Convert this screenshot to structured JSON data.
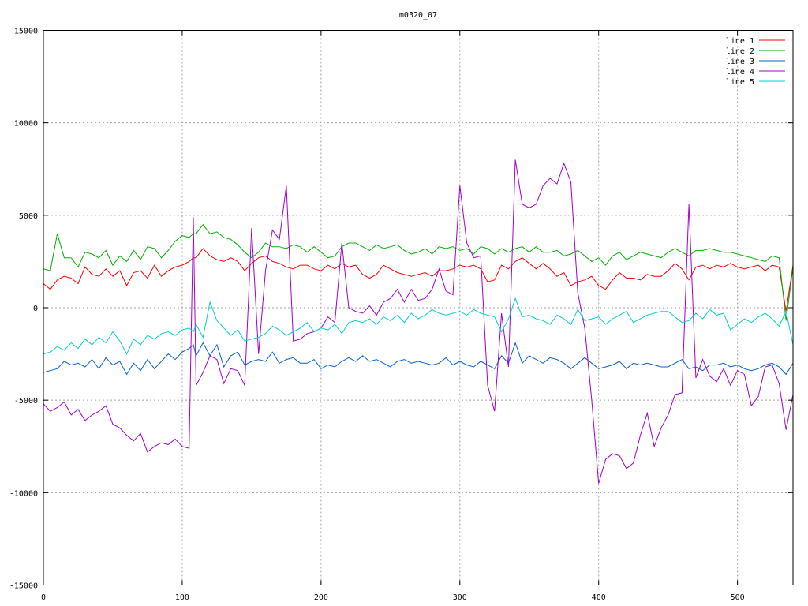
{
  "chart_data": {
    "type": "line",
    "title": "m0320_07",
    "xlabel": "",
    "ylabel": "",
    "xlim": [
      0,
      540
    ],
    "ylim": [
      -15000,
      15000
    ],
    "x_ticks": [
      0,
      100,
      200,
      300,
      400,
      500
    ],
    "y_ticks": [
      -15000,
      -10000,
      -5000,
      0,
      5000,
      10000,
      15000
    ],
    "x_tick_labels": [
      "0",
      "100",
      "200",
      "300",
      "400",
      "500"
    ],
    "y_tick_labels": [
      "-15000",
      "-10000",
      "-5000",
      "0",
      "5000",
      "10000",
      "15000"
    ],
    "grid": true,
    "legend_position": "top-right",
    "x": [
      0,
      5,
      10,
      15,
      20,
      25,
      30,
      35,
      40,
      45,
      50,
      55,
      60,
      65,
      70,
      75,
      80,
      85,
      90,
      95,
      100,
      105,
      108,
      110,
      115,
      120,
      125,
      130,
      135,
      140,
      145,
      150,
      155,
      160,
      165,
      170,
      175,
      180,
      185,
      190,
      195,
      200,
      205,
      210,
      215,
      220,
      225,
      230,
      235,
      240,
      245,
      250,
      255,
      260,
      265,
      270,
      275,
      280,
      285,
      290,
      295,
      300,
      305,
      310,
      315,
      320,
      325,
      330,
      335,
      340,
      345,
      350,
      355,
      360,
      365,
      370,
      375,
      380,
      385,
      390,
      395,
      400,
      405,
      410,
      415,
      420,
      425,
      430,
      435,
      440,
      445,
      450,
      455,
      460,
      465,
      470,
      475,
      480,
      485,
      490,
      495,
      500,
      505,
      510,
      515,
      520,
      525,
      530,
      535,
      540
    ],
    "series": [
      {
        "name": "line 1",
        "color": "#ff0000",
        "values": [
          1300,
          1000,
          1500,
          1700,
          1600,
          1300,
          2200,
          1800,
          1700,
          2100,
          1700,
          2000,
          1200,
          1900,
          2000,
          1600,
          2300,
          1700,
          2000,
          2200,
          2300,
          2500,
          2700,
          2700,
          3200,
          2800,
          2600,
          2500,
          2700,
          2500,
          2000,
          2400,
          2700,
          2800,
          2500,
          2400,
          2200,
          2100,
          2300,
          2300,
          2100,
          2000,
          2300,
          2100,
          2400,
          2200,
          2300,
          1800,
          1600,
          1800,
          2300,
          2100,
          1900,
          1800,
          1700,
          1800,
          1900,
          1700,
          2000,
          2000,
          2100,
          2300,
          2200,
          2300,
          2100,
          1400,
          1500,
          2300,
          2100,
          2500,
          2700,
          2400,
          2100,
          2400,
          2100,
          1700,
          1900,
          1200,
          1400,
          1500,
          1700,
          1200,
          1000,
          1500,
          1900,
          1600,
          1600,
          1500,
          1800,
          1700,
          1700,
          2000,
          2400,
          2100,
          1500,
          2200,
          2300,
          2100,
          2300,
          2200,
          2400,
          2200,
          2100,
          2200,
          2300,
          2000,
          2300,
          2200,
          -200,
          2300
        ]
      },
      {
        "name": "line 2",
        "color": "#00b000",
        "values": [
          2100,
          2000,
          4000,
          2700,
          2700,
          2200,
          3000,
          2900,
          2700,
          3100,
          2300,
          2800,
          2500,
          3100,
          2600,
          3300,
          3200,
          2700,
          3100,
          3600,
          3900,
          3800,
          4000,
          4000,
          4500,
          4000,
          4100,
          3800,
          3700,
          3400,
          3000,
          2700,
          3000,
          3500,
          3300,
          3300,
          3200,
          3400,
          3300,
          3000,
          3300,
          3000,
          2700,
          2800,
          3300,
          3500,
          3500,
          3300,
          3100,
          3400,
          3200,
          3300,
          3400,
          3100,
          2900,
          3000,
          3200,
          2900,
          3300,
          3200,
          3300,
          3100,
          3200,
          2900,
          3300,
          3200,
          2900,
          3200,
          3000,
          3200,
          3300,
          3000,
          3300,
          3000,
          3000,
          3100,
          2800,
          2900,
          3100,
          2800,
          2500,
          2700,
          2300,
          2800,
          3000,
          2600,
          2800,
          3000,
          2900,
          2800,
          2700,
          3000,
          3200,
          3000,
          2800,
          3100,
          3100,
          3200,
          3100,
          3000,
          3000,
          2900,
          2800,
          2700,
          2600,
          2500,
          2800,
          2700,
          -700,
          2200
        ]
      },
      {
        "name": "line 3",
        "color": "#0060d0",
        "values": [
          -3500,
          -3400,
          -3300,
          -2900,
          -3100,
          -3000,
          -3200,
          -2800,
          -3300,
          -2700,
          -3100,
          -2900,
          -3600,
          -3000,
          -3400,
          -2800,
          -3300,
          -2900,
          -2500,
          -2800,
          -2400,
          -2200,
          -2000,
          -2600,
          -1900,
          -2600,
          -2000,
          -3200,
          -2600,
          -2400,
          -3100,
          -2900,
          -2800,
          -2900,
          -2400,
          -3000,
          -2800,
          -2700,
          -3000,
          -3000,
          -2800,
          -3300,
          -3100,
          -3200,
          -2900,
          -2700,
          -2900,
          -2600,
          -2900,
          -2800,
          -3000,
          -3200,
          -2900,
          -2800,
          -3000,
          -2900,
          -3000,
          -3100,
          -3000,
          -2700,
          -3100,
          -2900,
          -3100,
          -3200,
          -2900,
          -3100,
          -3300,
          -2600,
          -3000,
          -1900,
          -3000,
          -2600,
          -2800,
          -3000,
          -2700,
          -2800,
          -3000,
          -3300,
          -3000,
          -2700,
          -3000,
          -3300,
          -3200,
          -3100,
          -2900,
          -3300,
          -3000,
          -3100,
          -3000,
          -3100,
          -3200,
          -3200,
          -3000,
          -2800,
          -3300,
          -3200,
          -3400,
          -3100,
          -3100,
          -3000,
          -3200,
          -3100,
          -3300,
          -3400,
          -3300,
          -3100,
          -3000,
          -3200,
          -3600,
          -3000
        ]
      },
      {
        "name": "line 4",
        "color": "#a000d0",
        "values": [
          -5200,
          -5600,
          -5400,
          -5100,
          -5800,
          -5500,
          -6100,
          -5800,
          -5600,
          -5300,
          -6300,
          -6500,
          -6900,
          -7200,
          -6800,
          -7800,
          -7500,
          -7300,
          -7400,
          -7100,
          -7500,
          -7600,
          4900,
          -4200,
          -3500,
          -2600,
          -2800,
          -4100,
          -3300,
          -3400,
          -4200,
          4300,
          -2500,
          2000,
          4200,
          3700,
          6600,
          -1800,
          -1700,
          -1400,
          -1300,
          -1100,
          -500,
          -800,
          3500,
          0,
          -200,
          -300,
          100,
          -400,
          300,
          500,
          1000,
          300,
          1000,
          400,
          500,
          1000,
          2100,
          900,
          700,
          6600,
          3500,
          2700,
          2800,
          -4200,
          -5600,
          -300,
          -3200,
          8000,
          5600,
          5400,
          5600,
          6600,
          7000,
          6700,
          7800,
          6800,
          800,
          -1100,
          -5000,
          -9500,
          -8200,
          -7900,
          -8000,
          -8700,
          -8400,
          -6900,
          -5700,
          -7500,
          -6500,
          -5800,
          -4700,
          -4600,
          5600,
          -3800,
          -2800,
          -3700,
          -4000,
          -3300,
          -4200,
          -3400,
          -3600,
          -5300,
          -4800,
          -3200,
          -3100,
          -4100,
          -6600,
          -4700
        ]
      },
      {
        "name": "line 5",
        "color": "#00d0d0",
        "values": [
          -2500,
          -2400,
          -2100,
          -2300,
          -1900,
          -2200,
          -1700,
          -2000,
          -1600,
          -1900,
          -1300,
          -1800,
          -2500,
          -1700,
          -2000,
          -1500,
          -1700,
          -1400,
          -1300,
          -1500,
          -1200,
          -1100,
          -1300,
          -900,
          -1600,
          300,
          -700,
          -1100,
          -1500,
          -1200,
          -1800,
          -1700,
          -1600,
          -1400,
          -1000,
          -1200,
          -1500,
          -1300,
          -1100,
          -800,
          -1300,
          -1100,
          -1200,
          -900,
          -1400,
          -800,
          -700,
          -800,
          -600,
          -900,
          -500,
          -700,
          -400,
          -800,
          -300,
          -600,
          -400,
          -100,
          -300,
          -400,
          -300,
          -200,
          -400,
          -100,
          -300,
          -400,
          -500,
          -1300,
          -600,
          500,
          -500,
          -400,
          -600,
          -700,
          -900,
          -400,
          -600,
          -900,
          -100,
          -700,
          -600,
          -500,
          -900,
          -600,
          -400,
          -200,
          -800,
          -600,
          -400,
          -300,
          -200,
          -200,
          -500,
          -800,
          -700,
          -300,
          -600,
          -100,
          -400,
          -300,
          -1200,
          -900,
          -600,
          -800,
          -500,
          -300,
          -600,
          -1000,
          -200,
          -2000
        ]
      }
    ]
  }
}
